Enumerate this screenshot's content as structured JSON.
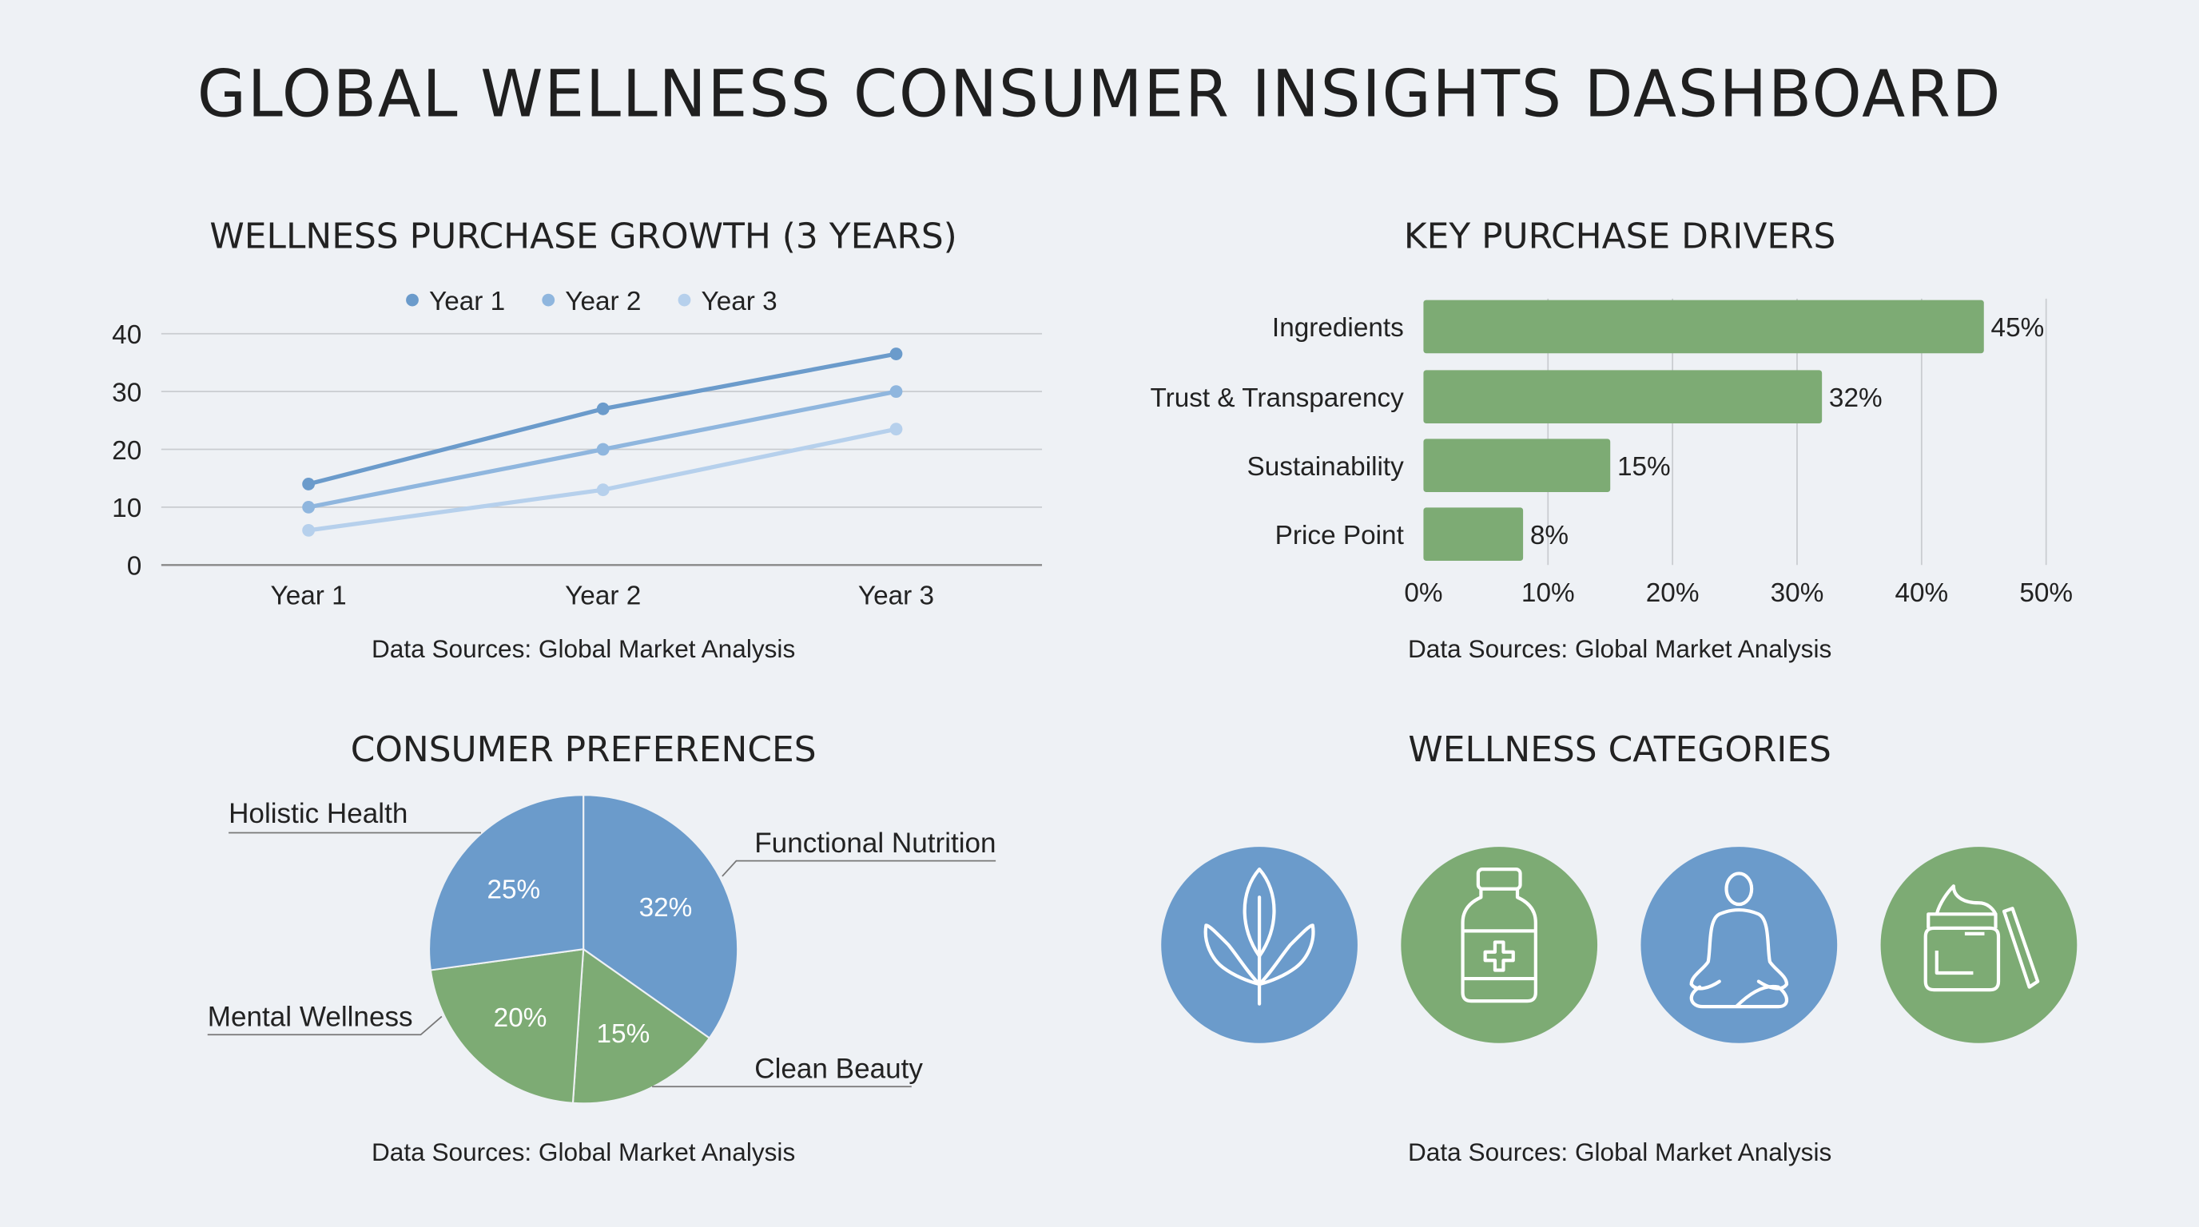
{
  "title": "GLOBAL WELLNESS CONSUMER INSIGHTS DASHBOARD",
  "colors": {
    "blue": "#6b9bcb",
    "blue2": "#8fb6de",
    "blue3": "#b6d0ec",
    "green": "#7dab74"
  },
  "chart_data": [
    {
      "type": "line",
      "title": "WELLNESS PURCHASE GROWTH (3 YEARS)",
      "categories": [
        "Year 1",
        "Year 2",
        "Year 3"
      ],
      "series": [
        {
          "name": "Year 1",
          "values": [
            14,
            27,
            36.5
          ]
        },
        {
          "name": "Year 2",
          "values": [
            10,
            20,
            30
          ]
        },
        {
          "name": "Year 3",
          "values": [
            6,
            13,
            23.5
          ]
        }
      ],
      "yticks": [
        "0",
        "10",
        "20",
        "30",
        "40"
      ],
      "ylim": [
        0,
        40
      ],
      "grid": true,
      "legend": "top",
      "source": "Data Sources: Global Market Analysis"
    },
    {
      "type": "bar",
      "orientation": "horizontal",
      "title": "KEY PURCHASE DRIVERS",
      "categories": [
        "Ingredients",
        "Trust & Transparency",
        "Sustainability",
        "Price Point"
      ],
      "values": [
        45,
        32,
        15,
        8
      ],
      "value_labels": [
        "45%",
        "32%",
        "15%",
        "8%"
      ],
      "xticks": [
        "0%",
        "10%",
        "20%",
        "30%",
        "40%",
        "50%"
      ],
      "xlim": [
        0,
        50
      ],
      "grid": true,
      "source": "Data Sources: Global Market Analysis"
    },
    {
      "type": "pie",
      "title": "CONSUMER PREFERENCES",
      "slices": [
        {
          "label": "Functional Nutrition",
          "value": 32,
          "text": "32%",
          "color": "blue"
        },
        {
          "label": "Clean Beauty",
          "value": 15,
          "text": "15%",
          "color": "green"
        },
        {
          "label": "Mental Wellness",
          "value": 20,
          "text": "20%",
          "color": "green"
        },
        {
          "label": "Holistic Health",
          "value": 25,
          "text": "25%",
          "color": "blue"
        }
      ],
      "source": "Data Sources: Global Market Analysis"
    }
  ],
  "categories": {
    "title": "WELLNESS CATEGORIES",
    "icons": [
      "leaf-plant-icon",
      "supplement-bottle-icon",
      "meditation-icon",
      "skincare-jar-icon"
    ],
    "source": "Data Sources: Global Market Analysis"
  }
}
